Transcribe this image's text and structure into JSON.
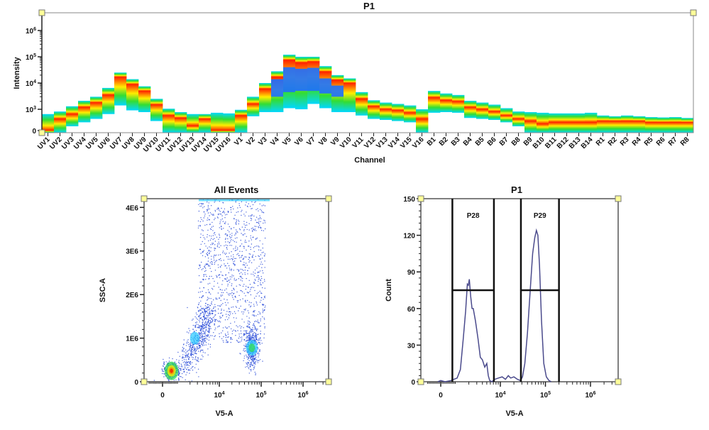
{
  "chart_data": [
    {
      "type": "heatmap",
      "title": "P1",
      "xlabel": "Channel",
      "ylabel": "Intensity",
      "yscale": "biexponential",
      "yticks": [
        {
          "base": "0",
          "exp": ""
        },
        {
          "base": "10",
          "exp": "3"
        },
        {
          "base": "10",
          "exp": "4"
        },
        {
          "base": "10",
          "exp": "5"
        },
        {
          "base": "10",
          "exp": "6"
        }
      ],
      "ytick_values": [
        0,
        1000,
        10000,
        100000,
        1000000
      ],
      "colors": {
        "low": "#00d8ff",
        "mid": "#33dd33",
        "high": "#ffee00",
        "peak": "#ff2000",
        "core": "#1e6eff"
      },
      "channels": [
        {
          "name": "UV1",
          "min": 0,
          "max": 600,
          "peak": 0
        },
        {
          "name": "UV2",
          "min": 0,
          "max": 800,
          "peak": 300
        },
        {
          "name": "UV3",
          "min": 40,
          "max": 1300,
          "peak": 600
        },
        {
          "name": "UV4",
          "min": 150,
          "max": 2100,
          "peak": 1200
        },
        {
          "name": "UV5",
          "min": 300,
          "max": 3000,
          "peak": 1800
        },
        {
          "name": "UV6",
          "min": 600,
          "max": 6500,
          "peak": 3500
        },
        {
          "name": "UV7",
          "min": 1400,
          "max": 25000,
          "peak": 17000
        },
        {
          "name": "UV8",
          "min": 900,
          "max": 14000,
          "peak": 9000
        },
        {
          "name": "UV9",
          "min": 750,
          "max": 7500,
          "peak": 5000
        },
        {
          "name": "UV10",
          "min": 200,
          "max": 2500,
          "peak": 1500
        },
        {
          "name": "UV11",
          "min": 0,
          "max": 1050,
          "peak": 500
        },
        {
          "name": "UV12",
          "min": 0,
          "max": 750,
          "peak": 350
        },
        {
          "name": "UV13",
          "min": 0,
          "max": 600,
          "peak": 50
        },
        {
          "name": "UV14",
          "min": 0,
          "max": 600,
          "peak": 300
        },
        {
          "name": "UV15",
          "min": 0,
          "max": 700,
          "peak": 0
        },
        {
          "name": "UV16",
          "min": 0,
          "max": 650,
          "peak": 0
        },
        {
          "name": "V1",
          "min": 0,
          "max": 950,
          "peak": 500
        },
        {
          "name": "V2",
          "min": 450,
          "max": 3000,
          "peak": 1600
        },
        {
          "name": "V3",
          "min": 750,
          "max": 10000,
          "peak": 6000
        },
        {
          "name": "V4",
          "min": 750,
          "max": 28000,
          "peak": 17000,
          "core": [
            3000,
            14000
          ]
        },
        {
          "name": "V5",
          "min": 1100,
          "max": 120000,
          "peak": 75000,
          "core": [
            4500,
            40000
          ]
        },
        {
          "name": "V6",
          "min": 1000,
          "max": 100000,
          "peak": 60000,
          "core": [
            5000,
            35000
          ]
        },
        {
          "name": "V7",
          "min": 1600,
          "max": 100000,
          "peak": 65000,
          "core": [
            5000,
            38000
          ]
        },
        {
          "name": "V8",
          "min": 1100,
          "max": 44000,
          "peak": 27000,
          "core": [
            4000,
            15000
          ]
        },
        {
          "name": "V9",
          "min": 750,
          "max": 20000,
          "peak": 13000,
          "core": [
            3000,
            8000
          ]
        },
        {
          "name": "V10",
          "min": 750,
          "max": 15000,
          "peak": 10000
        },
        {
          "name": "V11",
          "min": 500,
          "max": 4500,
          "peak": 2500
        },
        {
          "name": "V12",
          "min": 300,
          "max": 2200,
          "peak": 1300
        },
        {
          "name": "V13",
          "min": 250,
          "max": 1800,
          "peak": 1000
        },
        {
          "name": "V14",
          "min": 200,
          "max": 1600,
          "peak": 900
        },
        {
          "name": "V15",
          "min": 150,
          "max": 1400,
          "peak": 700
        },
        {
          "name": "V16",
          "min": 0,
          "max": 1000,
          "peak": 300
        },
        {
          "name": "B1",
          "min": 700,
          "max": 5000,
          "peak": 2800
        },
        {
          "name": "B2",
          "min": 750,
          "max": 4000,
          "peak": 2200
        },
        {
          "name": "B3",
          "min": 700,
          "max": 3500,
          "peak": 2000
        },
        {
          "name": "B4",
          "min": 350,
          "max": 2100,
          "peak": 1200
        },
        {
          "name": "B5",
          "min": 300,
          "max": 1800,
          "peak": 1000
        },
        {
          "name": "B6",
          "min": 250,
          "max": 1500,
          "peak": 800
        },
        {
          "name": "B7",
          "min": 150,
          "max": 1100,
          "peak": 500
        },
        {
          "name": "B8",
          "min": 40,
          "max": 800,
          "peak": 300
        },
        {
          "name": "B9",
          "min": 0,
          "max": 750,
          "peak": 200
        },
        {
          "name": "B10",
          "min": 0,
          "max": 700,
          "peak": 100
        },
        {
          "name": "B11",
          "min": 0,
          "max": 650,
          "peak": 150
        },
        {
          "name": "B12",
          "min": 0,
          "max": 650,
          "peak": 150
        },
        {
          "name": "B13",
          "min": 0,
          "max": 650,
          "peak": 150
        },
        {
          "name": "B14",
          "min": 0,
          "max": 700,
          "peak": 150
        },
        {
          "name": "R1",
          "min": 0,
          "max": 500,
          "peak": 200
        },
        {
          "name": "R2",
          "min": 0,
          "max": 450,
          "peak": 200
        },
        {
          "name": "R3",
          "min": 0,
          "max": 500,
          "peak": 200
        },
        {
          "name": "R4",
          "min": 0,
          "max": 450,
          "peak": 200
        },
        {
          "name": "R5",
          "min": 0,
          "max": 400,
          "peak": 150
        },
        {
          "name": "R6",
          "min": 0,
          "max": 380,
          "peak": 150
        },
        {
          "name": "R7",
          "min": 0,
          "max": 400,
          "peak": 150
        },
        {
          "name": "R8",
          "min": 0,
          "max": 350,
          "peak": 150
        }
      ]
    },
    {
      "type": "scatter",
      "title": "All Events",
      "xlabel": "V5-A",
      "ylabel": "SSC-A",
      "xscale": "biexponential",
      "xticks": [
        {
          "base": "0",
          "exp": ""
        },
        {
          "base": "10",
          "exp": "4"
        },
        {
          "base": "10",
          "exp": "5"
        },
        {
          "base": "10",
          "exp": "6"
        }
      ],
      "xtick_values": [
        0,
        10000,
        100000,
        1000000
      ],
      "yticks": [
        "0",
        "1E6",
        "2E6",
        "3E6",
        "4E6"
      ],
      "ytick_values": [
        0,
        1000000,
        2000000,
        3000000,
        4000000
      ],
      "ylim": [
        0,
        4200000
      ],
      "point_color": "#1a3fd6",
      "populations": [
        {
          "x": 600,
          "y": 250000,
          "spread_x": 0.22,
          "spread_y": 90000,
          "count": 450,
          "density": "high"
        },
        {
          "x": 2500,
          "y": 1000000,
          "spread_x": 0.18,
          "spread_y": 350000,
          "count": 550,
          "density": "medium"
        },
        {
          "x": 60000,
          "y": 800000,
          "spread_x": 0.09,
          "spread_y": 250000,
          "count": 450,
          "density": "medium"
        },
        {
          "x": 20000,
          "y": 2500000,
          "spread_x": 0.35,
          "spread_y": 900000,
          "count": 1100,
          "density": "low"
        }
      ]
    },
    {
      "type": "line",
      "title": "P1",
      "xlabel": "V5-A",
      "ylabel": "Count",
      "xscale": "biexponential",
      "xticks": [
        {
          "base": "0",
          "exp": ""
        },
        {
          "base": "10",
          "exp": "4"
        },
        {
          "base": "10",
          "exp": "5"
        },
        {
          "base": "10",
          "exp": "6"
        }
      ],
      "xtick_values": [
        0,
        10000,
        100000,
        1000000
      ],
      "yticks": [
        "0",
        "30",
        "60",
        "90",
        "120",
        "150"
      ],
      "ytick_values": [
        0,
        30,
        60,
        90,
        120,
        150
      ],
      "ylim": [
        0,
        150
      ],
      "line_color": "#4a4a8c",
      "x": [
        -200,
        0,
        300,
        700,
        900,
        1100,
        1300,
        1500,
        1700,
        1850,
        1950,
        2050,
        2200,
        2350,
        2500,
        2800,
        3200,
        3600,
        4000,
        4500,
        5000,
        5400,
        5800,
        6500,
        7500,
        9000,
        11000,
        13000,
        15000,
        17000,
        20000,
        24000,
        28000,
        31000,
        35000,
        40000,
        46000,
        52000,
        58000,
        63000,
        68000,
        74000,
        82000,
        92000,
        105000,
        120000,
        135000
      ],
      "y": [
        0,
        1,
        0,
        1,
        2,
        3,
        10,
        35,
        58,
        80,
        79,
        84,
        70,
        60,
        60,
        50,
        35,
        20,
        18,
        12,
        15,
        5,
        1,
        0,
        2,
        3,
        4,
        2,
        5,
        3,
        4,
        2,
        1,
        4,
        15,
        40,
        75,
        105,
        118,
        124,
        120,
        95,
        50,
        15,
        4,
        1,
        0
      ],
      "gates": [
        {
          "name": "P28",
          "from": 800,
          "to": 7200,
          "level": 75
        },
        {
          "name": "P29",
          "from": 28600,
          "to": 200000,
          "level": 75
        }
      ]
    }
  ]
}
